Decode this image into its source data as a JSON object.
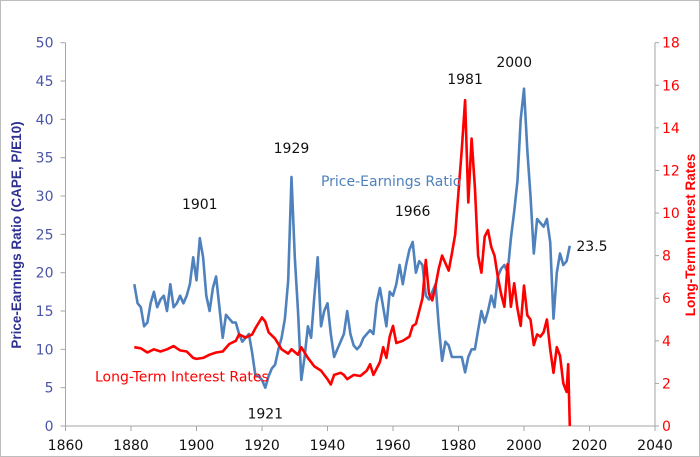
{
  "chart_data": {
    "type": "line",
    "xlim": [
      1860,
      2040
    ],
    "x_ticks": [
      1860,
      1880,
      1900,
      1920,
      1940,
      1960,
      1980,
      2000,
      2020,
      2040
    ],
    "y_left": {
      "label": "Price-Earnings Ratio (CAPE, P/E10)",
      "lim": [
        0,
        50
      ],
      "ticks": [
        0,
        5,
        10,
        15,
        20,
        25,
        30,
        35,
        40,
        45,
        50
      ]
    },
    "y_right": {
      "label": "Long-Term Interest Rates",
      "lim": [
        0,
        18
      ],
      "ticks": [
        0,
        2,
        4,
        6,
        8,
        10,
        12,
        14,
        16,
        18
      ]
    },
    "grid": false,
    "colors": {
      "pe": "#4F81BD",
      "rates": "#FF0000",
      "left_axis": "#2E3192",
      "left_ticks": "#4A55A8"
    },
    "series": [
      {
        "name": "Price-Earnings Ratio",
        "axis": "left",
        "points": [
          [
            1881,
            18.5
          ],
          [
            1882,
            16
          ],
          [
            1883,
            15.5
          ],
          [
            1884,
            13
          ],
          [
            1885,
            13.5
          ],
          [
            1886,
            16
          ],
          [
            1887,
            17.5
          ],
          [
            1888,
            15.5
          ],
          [
            1889,
            16.5
          ],
          [
            1890,
            17
          ],
          [
            1891,
            15
          ],
          [
            1892,
            18.5
          ],
          [
            1893,
            15.5
          ],
          [
            1894,
            16
          ],
          [
            1895,
            17
          ],
          [
            1896,
            16
          ],
          [
            1897,
            17
          ],
          [
            1898,
            18.5
          ],
          [
            1899,
            22
          ],
          [
            1900,
            19
          ],
          [
            1901,
            24.5
          ],
          [
            1902,
            22
          ],
          [
            1903,
            17
          ],
          [
            1904,
            15
          ],
          [
            1905,
            18
          ],
          [
            1906,
            19.5
          ],
          [
            1907,
            15.5
          ],
          [
            1908,
            11.5
          ],
          [
            1909,
            14.5
          ],
          [
            1910,
            14
          ],
          [
            1911,
            13.5
          ],
          [
            1912,
            13.5
          ],
          [
            1913,
            12
          ],
          [
            1914,
            11
          ],
          [
            1915,
            11.5
          ],
          [
            1916,
            12
          ],
          [
            1917,
            9.5
          ],
          [
            1918,
            6.5
          ],
          [
            1919,
            6.5
          ],
          [
            1920,
            6
          ],
          [
            1921,
            5
          ],
          [
            1922,
            6.5
          ],
          [
            1923,
            7.5
          ],
          [
            1924,
            8
          ],
          [
            1925,
            10
          ],
          [
            1926,
            11.5
          ],
          [
            1927,
            14
          ],
          [
            1928,
            19
          ],
          [
            1929,
            32.5
          ],
          [
            1930,
            22
          ],
          [
            1931,
            15
          ],
          [
            1932,
            6
          ],
          [
            1933,
            9
          ],
          [
            1934,
            13
          ],
          [
            1935,
            11.5
          ],
          [
            1936,
            17
          ],
          [
            1937,
            22
          ],
          [
            1938,
            13
          ],
          [
            1939,
            15
          ],
          [
            1940,
            16
          ],
          [
            1941,
            12
          ],
          [
            1942,
            9
          ],
          [
            1943,
            10
          ],
          [
            1944,
            11
          ],
          [
            1945,
            12
          ],
          [
            1946,
            15
          ],
          [
            1947,
            12
          ],
          [
            1948,
            10.5
          ],
          [
            1949,
            10
          ],
          [
            1950,
            10.5
          ],
          [
            1951,
            11.5
          ],
          [
            1952,
            12
          ],
          [
            1953,
            12.5
          ],
          [
            1954,
            12
          ],
          [
            1955,
            16
          ],
          [
            1956,
            18
          ],
          [
            1957,
            15.5
          ],
          [
            1958,
            13
          ],
          [
            1959,
            17.5
          ],
          [
            1960,
            17
          ],
          [
            1961,
            18.5
          ],
          [
            1962,
            21
          ],
          [
            1963,
            18.5
          ],
          [
            1964,
            21
          ],
          [
            1965,
            23
          ],
          [
            1966,
            24
          ],
          [
            1967,
            20
          ],
          [
            1968,
            21.5
          ],
          [
            1969,
            21
          ],
          [
            1970,
            17
          ],
          [
            1971,
            16.5
          ],
          [
            1972,
            17.5
          ],
          [
            1973,
            18.5
          ],
          [
            1974,
            13
          ],
          [
            1975,
            8.5
          ],
          [
            1976,
            11
          ],
          [
            1977,
            10.5
          ],
          [
            1978,
            9
          ],
          [
            1979,
            9
          ],
          [
            1980,
            9
          ],
          [
            1981,
            9
          ],
          [
            1982,
            7
          ],
          [
            1983,
            9
          ],
          [
            1984,
            10
          ],
          [
            1985,
            10
          ],
          [
            1986,
            12.5
          ],
          [
            1987,
            15
          ],
          [
            1988,
            13.5
          ],
          [
            1989,
            15
          ],
          [
            1990,
            17
          ],
          [
            1991,
            15.5
          ],
          [
            1992,
            19.5
          ],
          [
            1993,
            20.5
          ],
          [
            1994,
            21
          ],
          [
            1995,
            20
          ],
          [
            1996,
            24.5
          ],
          [
            1997,
            28
          ],
          [
            1998,
            32
          ],
          [
            1999,
            40
          ],
          [
            2000,
            44
          ],
          [
            2001,
            36
          ],
          [
            2002,
            30
          ],
          [
            2003,
            22.5
          ],
          [
            2004,
            27
          ],
          [
            2005,
            26.5
          ],
          [
            2006,
            26
          ],
          [
            2007,
            27
          ],
          [
            2008,
            24
          ],
          [
            2009,
            14
          ],
          [
            2010,
            20
          ],
          [
            2011,
            22.5
          ],
          [
            2012,
            21
          ],
          [
            2013,
            21.5
          ],
          [
            2014,
            23.5
          ]
        ]
      },
      {
        "name": "Long-Term Interest Rates",
        "axis": "right",
        "points": [
          [
            1881,
            3.7
          ],
          [
            1883,
            3.65
          ],
          [
            1885,
            3.45
          ],
          [
            1887,
            3.6
          ],
          [
            1889,
            3.5
          ],
          [
            1891,
            3.6
          ],
          [
            1893,
            3.75
          ],
          [
            1895,
            3.55
          ],
          [
            1897,
            3.5
          ],
          [
            1899,
            3.2
          ],
          [
            1900,
            3.15
          ],
          [
            1902,
            3.2
          ],
          [
            1904,
            3.35
          ],
          [
            1906,
            3.45
          ],
          [
            1908,
            3.5
          ],
          [
            1910,
            3.85
          ],
          [
            1912,
            4.0
          ],
          [
            1913,
            4.3
          ],
          [
            1915,
            4.15
          ],
          [
            1917,
            4.3
          ],
          [
            1918,
            4.6
          ],
          [
            1920,
            5.1
          ],
          [
            1921,
            4.9
          ],
          [
            1922,
            4.4
          ],
          [
            1924,
            4.1
          ],
          [
            1926,
            3.6
          ],
          [
            1928,
            3.4
          ],
          [
            1929,
            3.6
          ],
          [
            1931,
            3.35
          ],
          [
            1932,
            3.7
          ],
          [
            1934,
            3.2
          ],
          [
            1936,
            2.8
          ],
          [
            1938,
            2.6
          ],
          [
            1940,
            2.2
          ],
          [
            1941,
            1.95
          ],
          [
            1942,
            2.4
          ],
          [
            1944,
            2.5
          ],
          [
            1945,
            2.4
          ],
          [
            1946,
            2.2
          ],
          [
            1948,
            2.4
          ],
          [
            1950,
            2.35
          ],
          [
            1952,
            2.6
          ],
          [
            1953,
            2.9
          ],
          [
            1954,
            2.4
          ],
          [
            1956,
            3.0
          ],
          [
            1957,
            3.7
          ],
          [
            1958,
            3.2
          ],
          [
            1959,
            4.2
          ],
          [
            1960,
            4.7
          ],
          [
            1961,
            3.9
          ],
          [
            1963,
            4.0
          ],
          [
            1965,
            4.2
          ],
          [
            1966,
            4.7
          ],
          [
            1967,
            4.8
          ],
          [
            1969,
            6.0
          ],
          [
            1970,
            7.8
          ],
          [
            1971,
            6.2
          ],
          [
            1972,
            5.9
          ],
          [
            1973,
            6.6
          ],
          [
            1974,
            7.4
          ],
          [
            1975,
            8.0
          ],
          [
            1977,
            7.3
          ],
          [
            1978,
            8.1
          ],
          [
            1979,
            9.0
          ],
          [
            1980,
            11.0
          ],
          [
            1981,
            13.0
          ],
          [
            1982,
            15.3
          ],
          [
            1983,
            10.5
          ],
          [
            1984,
            13.5
          ],
          [
            1985,
            11.2
          ],
          [
            1986,
            8.0
          ],
          [
            1987,
            7.2
          ],
          [
            1988,
            8.9
          ],
          [
            1989,
            9.2
          ],
          [
            1990,
            8.4
          ],
          [
            1991,
            8.0
          ],
          [
            1992,
            7.0
          ],
          [
            1993,
            6.2
          ],
          [
            1994,
            5.6
          ],
          [
            1995,
            7.6
          ],
          [
            1996,
            5.6
          ],
          [
            1997,
            6.7
          ],
          [
            1998,
            5.5
          ],
          [
            1999,
            4.7
          ],
          [
            2000,
            6.6
          ],
          [
            2001,
            5.2
          ],
          [
            2002,
            5.0
          ],
          [
            2003,
            3.8
          ],
          [
            2004,
            4.3
          ],
          [
            2005,
            4.2
          ],
          [
            2006,
            4.4
          ],
          [
            2007,
            5.0
          ],
          [
            2008,
            3.6
          ],
          [
            2009,
            2.5
          ],
          [
            2010,
            3.7
          ],
          [
            2011,
            3.3
          ],
          [
            2012,
            2.0
          ],
          [
            2013,
            1.6
          ],
          [
            2013.5,
            2.9
          ],
          [
            2014,
            0
          ]
        ]
      }
    ],
    "annotations": [
      {
        "text": "1901",
        "x": 1901,
        "y": 28.3,
        "color": "#111"
      },
      {
        "text": "1929",
        "x": 1929,
        "y": 35.6,
        "color": "#111"
      },
      {
        "text": "Price-Earnings Ratio",
        "x": 1938,
        "y": 31.3,
        "color": "#4F81BD",
        "anchor": "start"
      },
      {
        "text": "1966",
        "x": 1966,
        "y": 27.4,
        "color": "#111"
      },
      {
        "text": "1981",
        "x": 1982,
        "y": 44.6,
        "color": "#111"
      },
      {
        "text": "2000",
        "x": 1997,
        "y": 46.8,
        "color": "#111"
      },
      {
        "text": "23.5",
        "x": 2016,
        "y": 22.8,
        "color": "#111",
        "anchor": "start"
      },
      {
        "text": "1921",
        "x": 1921,
        "y": 1.0,
        "color": "#111"
      },
      {
        "text": "Long-Term Interest Rates",
        "x": 1869,
        "y": 5.8,
        "color": "#FF0000",
        "anchor": "start"
      }
    ]
  }
}
